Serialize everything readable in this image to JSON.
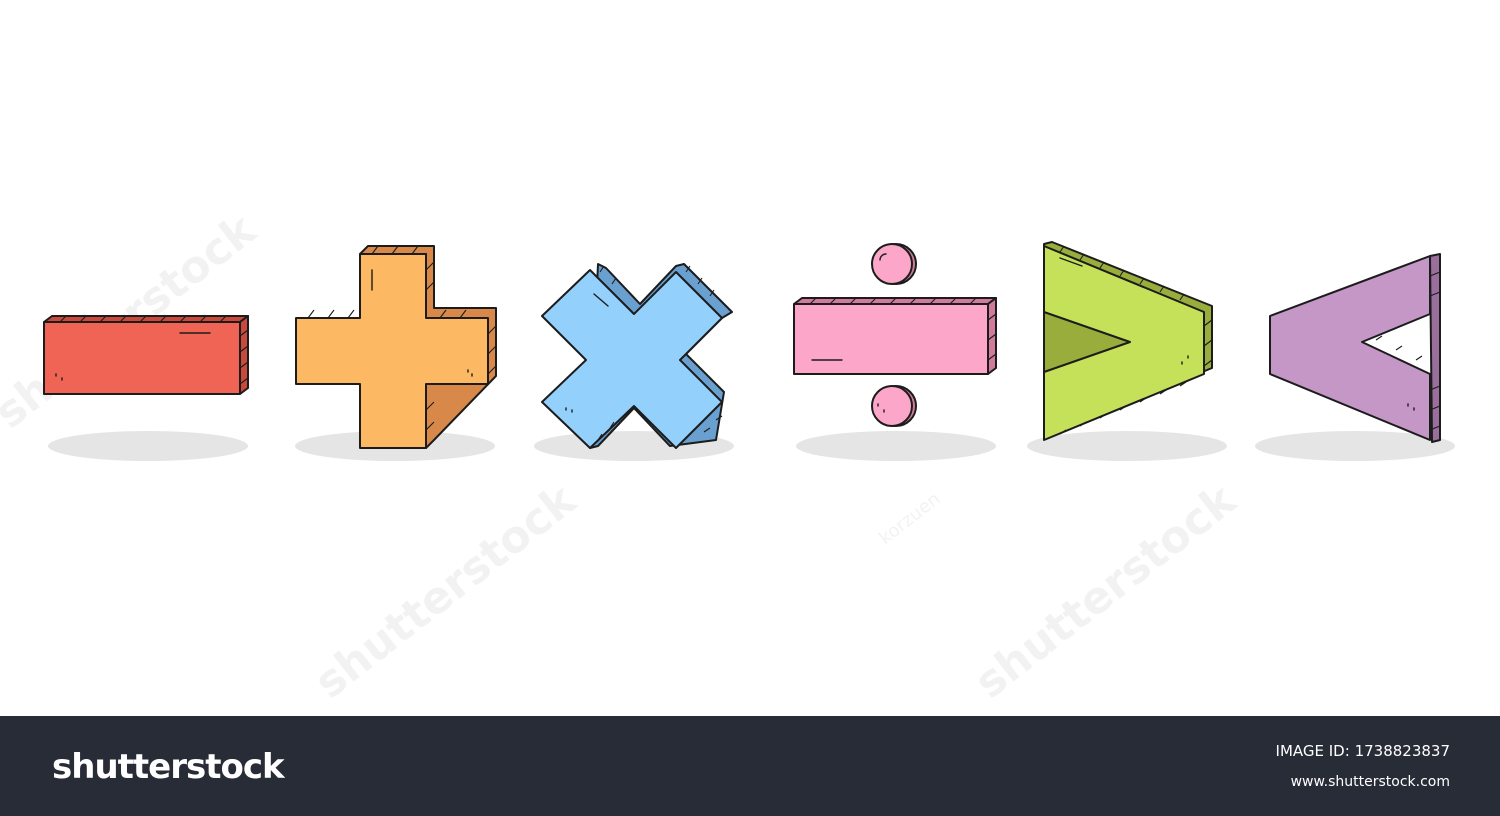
{
  "symbols": [
    {
      "name": "minus",
      "color": "#ef6455",
      "side": "#c94a3d"
    },
    {
      "name": "plus",
      "color": "#fdb864",
      "side": "#d8894a"
    },
    {
      "name": "multiply",
      "color": "#93d0fc",
      "side": "#6aa0cf"
    },
    {
      "name": "divide",
      "color": "#fca6c9",
      "side": "#d07b9c"
    },
    {
      "name": "greater-than",
      "color": "#c4e159",
      "side": "#98ad3c"
    },
    {
      "name": "less-than",
      "color": "#c497c6",
      "side": "#9a6f9c"
    }
  ],
  "watermarks": [
    "shutterstock",
    "shutterstock",
    "shutterstock",
    "korzuen",
    "korzuen"
  ],
  "footer": {
    "brand": "shutterstock",
    "image_id_label": "IMAGE ID:",
    "image_id": "1738823837",
    "url": "www.shutterstock.com"
  },
  "colors": {
    "footer_bg": "#272c37",
    "shadow": "#e5e5e5"
  }
}
